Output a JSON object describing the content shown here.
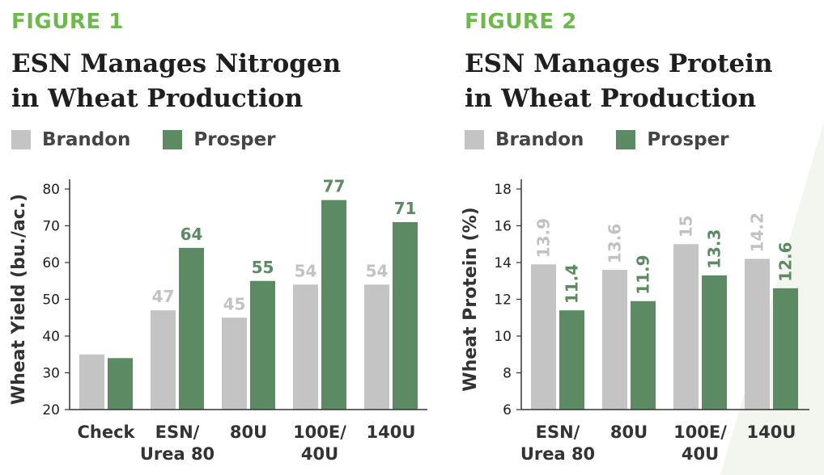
{
  "colors": {
    "brandon": "#c4c4c4",
    "prosper": "#5c8a63",
    "figure_label": "#6fb84d",
    "title": "#1f1f1f"
  },
  "chart_data": [
    {
      "type": "bar",
      "figure_label": "FIGURE 1",
      "title_line1": "ESN Manages Nitrogen",
      "title_line2": "in Wheat Production",
      "legend": [
        "Brandon",
        "Prosper"
      ],
      "ylabel": "Wheat Yield (bu./ac.)",
      "ylim": [
        20,
        80
      ],
      "yticks": [
        "20",
        "30",
        "40",
        "50",
        "60",
        "70",
        "80"
      ],
      "categories": [
        [
          "Check"
        ],
        [
          "ESN/",
          "Urea 80"
        ],
        [
          "80U"
        ],
        [
          "100E/",
          "40U"
        ],
        [
          "140U"
        ]
      ],
      "series": [
        {
          "name": "Brandon",
          "values": [
            35,
            47,
            45,
            54,
            54
          ],
          "labels": [
            "",
            "47",
            "45",
            "54",
            "54"
          ]
        },
        {
          "name": "Prosper",
          "values": [
            34,
            64,
            55,
            77,
            71
          ],
          "labels": [
            "",
            "64",
            "55",
            "77",
            "71"
          ]
        }
      ]
    },
    {
      "type": "bar",
      "figure_label": "FIGURE 2",
      "title_line1": "ESN Manages Protein",
      "title_line2": "in Wheat Production",
      "legend": [
        "Brandon",
        "Prosper"
      ],
      "ylabel": "Wheat Protein (%)",
      "ylim": [
        6,
        18
      ],
      "yticks": [
        "6",
        "8",
        "10",
        "12",
        "14",
        "16",
        "18"
      ],
      "categories": [
        [
          "ESN/",
          "Urea 80"
        ],
        [
          "80U"
        ],
        [
          "100E/",
          "40U"
        ],
        [
          "140U"
        ]
      ],
      "series": [
        {
          "name": "Brandon",
          "values": [
            13.9,
            13.6,
            15,
            14.2
          ],
          "labels": [
            "13.9",
            "13.6",
            "15",
            "14.2"
          ]
        },
        {
          "name": "Prosper",
          "values": [
            11.4,
            11.9,
            13.3,
            12.6
          ],
          "labels": [
            "11.4",
            "11.9",
            "13.3",
            "12.6"
          ]
        }
      ]
    }
  ]
}
